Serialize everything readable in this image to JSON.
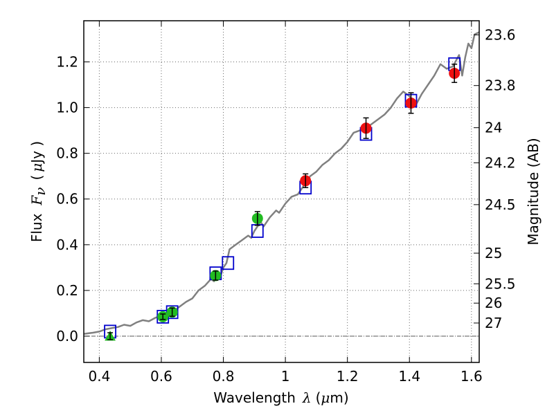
{
  "chart_data": {
    "type": "scatter",
    "title": "",
    "xlabel": {
      "prefix": "Wavelength",
      "symbol": "λ",
      "unit_open": "(",
      "unit_mu": "μ",
      "unit_rest": "m)"
    },
    "ylabel": {
      "prefix": "Flux",
      "symbol": "F",
      "symbol_sub": "ν",
      "unit_open": "(",
      "unit_mu": "μ",
      "unit_rest": "Jy )"
    },
    "y2label": "Magnitude (AB)",
    "xlim": [
      0.35,
      1.625
    ],
    "ylim": [
      -0.115,
      1.38
    ],
    "x_ticks": [
      0.4,
      0.6,
      0.8,
      1.0,
      1.2,
      1.4,
      1.6
    ],
    "x_tick_labels": [
      "0.4",
      "0.6",
      "0.8",
      "1",
      "1.2",
      "1.4",
      "1.6"
    ],
    "y_ticks": [
      0.0,
      0.2,
      0.4,
      0.6,
      0.8,
      1.0,
      1.2
    ],
    "y_tick_labels": [
      "0.0",
      "0.2",
      "0.4",
      "0.6",
      "0.8",
      "1.0",
      "1.2"
    ],
    "y2_ticks": [
      23.6,
      23.8,
      24,
      24.2,
      24.5,
      25,
      25.5,
      26,
      27
    ],
    "y2_tick_labels": [
      "23.6",
      "23.8",
      "24",
      "24.2",
      "24.5",
      "25",
      "25.5",
      "26",
      "27"
    ],
    "grid": true,
    "zero_line": true,
    "colors": {
      "model_spectrum": "#808080",
      "green_points": "#22bb22",
      "red_points": "#ee1111",
      "model_boxes": "#0000cc",
      "error_bars": "#000000"
    },
    "series": [
      {
        "name": "model spectrum",
        "type": "line",
        "x": [
          0.35,
          0.38,
          0.4,
          0.42,
          0.44,
          0.46,
          0.48,
          0.5,
          0.52,
          0.54,
          0.56,
          0.58,
          0.6,
          0.62,
          0.64,
          0.66,
          0.68,
          0.7,
          0.72,
          0.74,
          0.76,
          0.77,
          0.78,
          0.79,
          0.8,
          0.81,
          0.82,
          0.84,
          0.86,
          0.88,
          0.89,
          0.9,
          0.92,
          0.93,
          0.95,
          0.97,
          0.98,
          1.0,
          1.02,
          1.04,
          1.06,
          1.08,
          1.1,
          1.12,
          1.14,
          1.16,
          1.18,
          1.2,
          1.22,
          1.24,
          1.26,
          1.28,
          1.3,
          1.32,
          1.34,
          1.36,
          1.38,
          1.4,
          1.42,
          1.44,
          1.46,
          1.48,
          1.5,
          1.52,
          1.54,
          1.56,
          1.57,
          1.58,
          1.59,
          1.6,
          1.61,
          1.625
        ],
        "y": [
          0.01,
          0.015,
          0.02,
          0.03,
          0.035,
          0.04,
          0.05,
          0.045,
          0.06,
          0.07,
          0.065,
          0.08,
          0.09,
          0.095,
          0.11,
          0.13,
          0.15,
          0.165,
          0.2,
          0.22,
          0.25,
          0.24,
          0.27,
          0.26,
          0.3,
          0.32,
          0.38,
          0.4,
          0.42,
          0.44,
          0.43,
          0.46,
          0.5,
          0.48,
          0.52,
          0.55,
          0.54,
          0.58,
          0.61,
          0.62,
          0.66,
          0.7,
          0.72,
          0.75,
          0.77,
          0.8,
          0.82,
          0.85,
          0.89,
          0.9,
          0.91,
          0.93,
          0.95,
          0.97,
          1.0,
          1.04,
          1.07,
          1.05,
          1.01,
          1.06,
          1.1,
          1.14,
          1.19,
          1.17,
          1.18,
          1.23,
          1.14,
          1.22,
          1.28,
          1.26,
          1.32,
          1.33
        ]
      },
      {
        "name": "model box",
        "type": "box",
        "x": [
          0.435,
          0.605,
          0.635,
          0.775,
          0.815,
          0.91,
          1.065,
          1.26,
          1.405,
          1.545
        ],
        "y": [
          0.02,
          0.085,
          0.105,
          0.275,
          0.32,
          0.46,
          0.65,
          0.885,
          1.03,
          1.19
        ]
      },
      {
        "name": "green detections",
        "type": "point",
        "x": [
          0.605,
          0.635,
          0.775,
          0.91
        ],
        "y": [
          0.085,
          0.105,
          0.265,
          0.515
        ],
        "err": [
          0.012,
          0.018,
          0.02,
          0.03
        ]
      },
      {
        "name": "green upper limit",
        "type": "triangle",
        "x": [
          0.435
        ],
        "y": [
          0.0
        ],
        "err": [
          0.015
        ]
      },
      {
        "name": "red detections",
        "type": "point",
        "x": [
          1.065,
          1.26,
          1.405,
          1.545
        ],
        "y": [
          0.68,
          0.91,
          1.02,
          1.15
        ],
        "err": [
          0.03,
          0.045,
          0.045,
          0.04
        ]
      }
    ]
  }
}
